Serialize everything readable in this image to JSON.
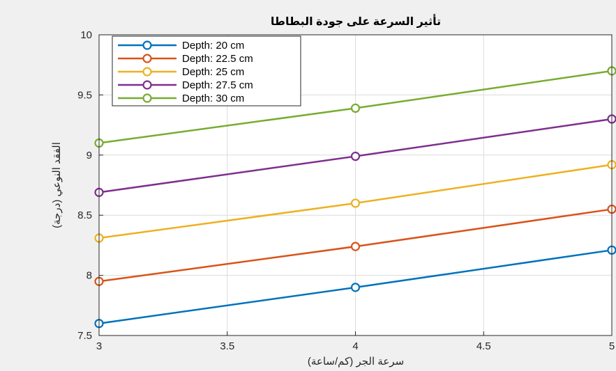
{
  "chart_data": {
    "type": "line",
    "title": "تأثير السرعة على جودة البطاطا",
    "xlabel": "سرعة الجر (كم/ساعة)",
    "ylabel": "الفقد النوعي (درجة)",
    "x": [
      3,
      4,
      5
    ],
    "xlim": [
      3,
      5
    ],
    "ylim": [
      7.5,
      10
    ],
    "xticks": [
      3,
      3.5,
      4,
      4.5,
      5
    ],
    "yticks": [
      7.5,
      8,
      8.5,
      9,
      9.5,
      10
    ],
    "xtick_labels": [
      "3",
      "3.5",
      "4",
      "4.5",
      "5"
    ],
    "ytick_labels": [
      "7.5",
      "8",
      "8.5",
      "9",
      "9.5",
      "10"
    ],
    "grid": true,
    "legend_position": "top-left",
    "series": [
      {
        "name": "Depth: 20 cm",
        "values": [
          7.6,
          7.9,
          8.21
        ],
        "color": "#0072BD"
      },
      {
        "name": "Depth: 22.5 cm",
        "values": [
          7.95,
          8.24,
          8.55
        ],
        "color": "#D95319"
      },
      {
        "name": "Depth: 25 cm",
        "values": [
          8.31,
          8.6,
          8.92
        ],
        "color": "#EDB120"
      },
      {
        "name": "Depth: 27.5 cm",
        "values": [
          8.69,
          8.99,
          9.3
        ],
        "color": "#7E2F8E"
      },
      {
        "name": "Depth: 30 cm",
        "values": [
          9.1,
          9.39,
          9.7
        ],
        "color": "#77AC30"
      }
    ]
  }
}
